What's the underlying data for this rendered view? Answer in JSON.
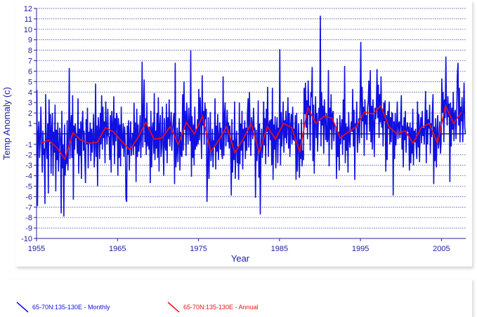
{
  "chart_data": {
    "type": "line",
    "title": "",
    "xlabel": "Year",
    "ylabel": "Temp Anomaly (c)",
    "xlim": [
      1955,
      2008
    ],
    "ylim": [
      -10,
      12
    ],
    "x_ticks": [
      "1955",
      "1965",
      "1975",
      "1985",
      "1995",
      "2005"
    ],
    "y_ticks": [
      "12",
      "11",
      "10",
      "9",
      "8",
      "7",
      "6",
      "5",
      "4",
      "3",
      "2",
      "1",
      "",
      "-1",
      "-2",
      "-3",
      "-4",
      "-5",
      "-6",
      "-7",
      "-8",
      "-9",
      "-10"
    ],
    "grid": "horizontal dotted",
    "legend_position": "bottom",
    "series": [
      {
        "name": "65-70N:135-130E - Monthly",
        "color": "#1010e0",
        "start": "1955-01",
        "frequency": "monthly",
        "values": [
          4.2,
          -6.9,
          0.1,
          1.2,
          -2.3,
          -0.5,
          2.6,
          -1.0,
          -3.7,
          0.3,
          -2.0,
          -1.4,
          -6.7,
          3.8,
          -1.1,
          -2.4,
          1.0,
          -5.7,
          3.3,
          -0.8,
          1.9,
          -3.8,
          0.5,
          2.0,
          -4.0,
          0.2,
          -1.8,
          2.8,
          -5.5,
          0.4,
          -2.5,
          1.1,
          -3.6,
          -1.2,
          0.6,
          -0.4,
          -7.6,
          2.2,
          -3.3,
          -1.0,
          -7.9,
          0.9,
          -4.0,
          -2.1,
          -2.9,
          1.3,
          -3.5,
          -0.9,
          6.3,
          -2.4,
          0.7,
          1.8,
          -2.3,
          3.7,
          -6.3,
          0.8,
          -1.5,
          1.0,
          -0.4,
          0.0,
          -1.9,
          3.4,
          -3.8,
          0.5,
          -2.1,
          1.2,
          -4.3,
          0.9,
          2.2,
          -1.6,
          0.3,
          -2.0,
          -4.7,
          1.4,
          -1.0,
          2.5,
          -3.3,
          0.2,
          -0.9,
          1.1,
          -2.6,
          0.5,
          -1.8,
          -0.2,
          1.9,
          -3.2,
          -1.3,
          4.8,
          -2.2,
          0.8,
          -5.0,
          1.6,
          0.3,
          -2.4,
          2.0,
          -1.0,
          3.7,
          -1.5,
          2.6,
          -0.4,
          1.2,
          -2.8,
          3.1,
          0.5,
          -1.0,
          2.4,
          -0.2,
          -0.3,
          -2.5,
          1.8,
          -3.7,
          2.2,
          0.6,
          -1.1,
          3.6,
          -2.9,
          1.5,
          -0.7,
          2.0,
          1.6,
          -4.0,
          1.5,
          -2.3,
          0.9,
          -3.1,
          2.6,
          -0.8,
          -1.4,
          1.0,
          -2.2,
          0.7,
          -0.8,
          -6.2,
          -6.5,
          0.8,
          -2.0,
          1.3,
          -3.5,
          -0.4,
          1.2,
          -2.1,
          -0.9,
          0.1,
          -2.0,
          3.0,
          -1.2,
          1.1,
          -4.6,
          2.4,
          -2.2,
          0.9,
          -1.7,
          -0.5,
          1.8,
          -2.3,
          -0.1,
          6.9,
          -1.3,
          2.1,
          5.2,
          -0.8,
          1.5,
          -2.0,
          3.0,
          -1.2,
          0.6,
          -1.5,
          0.7,
          -4.7,
          2.2,
          -3.2,
          0.5,
          1.1,
          -1.9,
          3.9,
          -2.5,
          0.3,
          -1.4,
          2.0,
          -2.3,
          3.5,
          -3.6,
          0.8,
          1.8,
          -2.2,
          -1.3,
          2.6,
          -0.9,
          -4.0,
          1.5,
          -1.1,
          -1.6,
          2.9,
          -2.8,
          1.6,
          -0.5,
          3.3,
          -1.2,
          0.8,
          2.1,
          -1.6,
          0.4,
          1.0,
          2.0,
          -4.8,
          6.8,
          -3.2,
          -1.9,
          0.6,
          -2.7,
          -0.8,
          1.5,
          -3.5,
          0.2,
          -2.0,
          -2.2,
          3.8,
          -1.6,
          5.0,
          0.4,
          2.2,
          -2.1,
          3.0,
          1.1,
          -1.0,
          2.5,
          0.6,
          -0.7,
          8.0,
          -4.1,
          1.7,
          -2.3,
          0.9,
          -3.0,
          2.6,
          -1.5,
          0.4,
          -1.2,
          1.4,
          -1.0,
          4.3,
          -0.6,
          3.5,
          1.2,
          -2.4,
          5.6,
          0.8,
          2.2,
          -1.0,
          3.0,
          1.4,
          2.4,
          -6.5,
          -3.8,
          1.6,
          -4.3,
          -0.9,
          2.1,
          -2.6,
          -1.4,
          0.5,
          -3.2,
          -0.6,
          -1.3,
          3.4,
          -3.4,
          0.8,
          -1.7,
          1.9,
          -2.5,
          -0.3,
          1.1,
          -1.5,
          0.6,
          -2.0,
          -2.4,
          5.5,
          -2.1,
          1.9,
          3.0,
          -1.2,
          0.4,
          2.3,
          -0.8,
          1.1,
          -1.4,
          0.8,
          -1.1,
          -5.9,
          1.4,
          -3.7,
          -0.6,
          -2.5,
          3.1,
          -4.3,
          -1.0,
          0.3,
          -2.8,
          -1.2,
          -4.4,
          3.0,
          -2.9,
          1.0,
          -1.6,
          2.2,
          -3.4,
          0.5,
          -0.7,
          1.3,
          -2.4,
          0.6,
          -1.6,
          2.0,
          3.4,
          -1.3,
          4.0,
          0.2,
          -2.1,
          1.6,
          0.9,
          -0.5,
          2.5,
          0.4,
          0.5,
          -6.1,
          0.4,
          -2.6,
          -1.3,
          3.2,
          -4.2,
          1.0,
          -7.7,
          -1.8,
          0.5,
          -2.3,
          -1.2,
          3.1,
          -1.1,
          1.5,
          -2.9,
          2.4,
          0.2,
          4.5,
          -2.2,
          0.8,
          1.3,
          -0.6,
          1.4,
          -3.0,
          4.4,
          -4.4,
          0.9,
          -1.5,
          1.7,
          -3.3,
          0.3,
          1.6,
          -2.8,
          0.6,
          -0.5,
          8.1,
          -3.0,
          2.1,
          -1.2,
          0.6,
          3.1,
          -1.8,
          1.3,
          -0.4,
          2.2,
          -0.9,
          0.9,
          3.5,
          -1.4,
          2.0,
          -2.2,
          0.8,
          1.9,
          -1.0,
          2.6,
          -0.6,
          0.5,
          -0.7,
          1.8,
          -4.4,
          2.0,
          -3.6,
          -1.1,
          1.0,
          -4.2,
          -0.5,
          -2.4,
          1.4,
          -3.1,
          -1.6,
          -2.5,
          4.4,
          1.9,
          4.9,
          0.6,
          3.2,
          -0.5,
          5.1,
          1.8,
          2.7,
          -1.6,
          4.0,
          3.5,
          6.4,
          -2.6,
          2.8,
          -3.8,
          1.0,
          3.6,
          -0.4,
          2.0,
          -1.7,
          1.2,
          2.5,
          1.2,
          11.3,
          -1.2,
          4.0,
          0.8,
          2.7,
          -1.9,
          3.3,
          1.4,
          -0.6,
          2.0,
          -0.8,
          -0.6,
          6.1,
          -3.1,
          2.5,
          0.4,
          3.8,
          -1.5,
          1.9,
          2.2,
          -0.7,
          1.0,
          0.8,
          0.6,
          -4.3,
          1.5,
          -2.2,
          0.2,
          -3.5,
          1.8,
          -1.0,
          0.6,
          1.4,
          -2.0,
          3.3,
          -0.6,
          6.5,
          -2.8,
          1.0,
          -1.6,
          0.7,
          -3.7,
          2.1,
          -0.4,
          -1.3,
          0.5,
          1.2,
          0.2,
          4.3,
          -1.2,
          2.3,
          -4.4,
          1.0,
          0.6,
          3.1,
          -1.8,
          0.2,
          1.5,
          -0.9,
          3.6,
          8.8,
          -0.4,
          4.5,
          1.2,
          2.6,
          -2.1,
          3.3,
          0.9,
          1.8,
          -0.6,
          2.5,
          3.2,
          5.1,
          0.2,
          6.1,
          -0.8,
          2.7,
          -1.5,
          3.3,
          1.0,
          -2.2,
          2.5,
          1.4,
          2.6,
          6.2,
          1.5,
          4.7,
          -0.4,
          3.8,
          1.1,
          5.5,
          0.6,
          2.4,
          -1.2,
          3.0,
          1.2,
          3.2,
          -3.6,
          1.8,
          -2.5,
          2.2,
          0.5,
          3.1,
          -1.0,
          1.6,
          -0.8,
          2.0,
          1.9,
          -5.9,
          1.2,
          -2.4,
          2.0,
          -1.1,
          0.6,
          3.1,
          -0.5,
          0.9,
          1.2,
          -0.4,
          1.3,
          3.7,
          -1.5,
          0.8,
          -3.2,
          1.6,
          -0.6,
          2.2,
          -1.8,
          0.4,
          1.1,
          0.2,
          0.7,
          -3.5,
          1.1,
          -2.8,
          0.6,
          -1.9,
          2.4,
          -3.0,
          0.3,
          -0.8,
          0.5,
          -1.3,
          -2.4,
          3.1,
          -1.3,
          1.9,
          -2.7,
          0.8,
          1.6,
          -0.9,
          2.2,
          -0.2,
          0.6,
          -1.0,
          1.1,
          4.1,
          -2.8,
          2.3,
          -1.0,
          1.4,
          0.5,
          2.8,
          -1.9,
          1.0,
          -0.3,
          2.1,
          3.8,
          -4.8,
          0.7,
          -2.6,
          1.5,
          -3.2,
          0.4,
          1.8,
          -1.4,
          -0.6,
          1.2,
          -1.9,
          -0.9,
          5.3,
          2.0,
          4.0,
          -0.8,
          3.3,
          1.5,
          7.4,
          2.4,
          0.8,
          3.6,
          1.6,
          2.9,
          -4.6,
          3.0,
          -1.2,
          2.5,
          0.4,
          4.0,
          -0.7,
          1.8,
          2.3,
          -0.5,
          1.4,
          5.6,
          6.8,
          0.8,
          4.4,
          -0.8,
          2.6,
          1.2,
          3.5,
          -0.8,
          2.0,
          4.9,
          0.6,
          0.0
        ]
      },
      {
        "name": "65-70N:135-130E - Annual",
        "color": "#ee1111",
        "years": [
          1955,
          1956,
          1957,
          1958,
          1959,
          1960,
          1961,
          1962,
          1963,
          1964,
          1965,
          1966,
          1967,
          1968,
          1969,
          1970,
          1971,
          1972,
          1973,
          1974,
          1975,
          1976,
          1977,
          1978,
          1979,
          1980,
          1981,
          1982,
          1983,
          1984,
          1985,
          1986,
          1987,
          1988,
          1989,
          1990,
          1991,
          1992,
          1993,
          1994,
          1995,
          1996,
          1997,
          1998,
          1999,
          2000,
          2001,
          2002,
          2003,
          2004,
          2005,
          2006,
          2007
        ],
        "values": [
          -0.9,
          -0.6,
          -1.3,
          -2.4,
          0.1,
          -0.6,
          -0.9,
          -0.8,
          0.6,
          0.2,
          -0.7,
          -1.5,
          -0.4,
          1.1,
          -0.5,
          -0.4,
          0.7,
          -1.0,
          1.1,
          0.0,
          1.7,
          -1.7,
          -0.6,
          0.7,
          -1.8,
          -0.5,
          1.0,
          -1.8,
          0.7,
          -0.5,
          1.0,
          0.6,
          -1.7,
          2.5,
          1.0,
          1.7,
          1.5,
          -0.4,
          0.2,
          0.7,
          2.1,
          1.9,
          2.7,
          0.7,
          0.0,
          0.3,
          -0.9,
          0.6,
          1.0,
          -0.9,
          2.7,
          1.0,
          2.1
        ]
      }
    ]
  }
}
